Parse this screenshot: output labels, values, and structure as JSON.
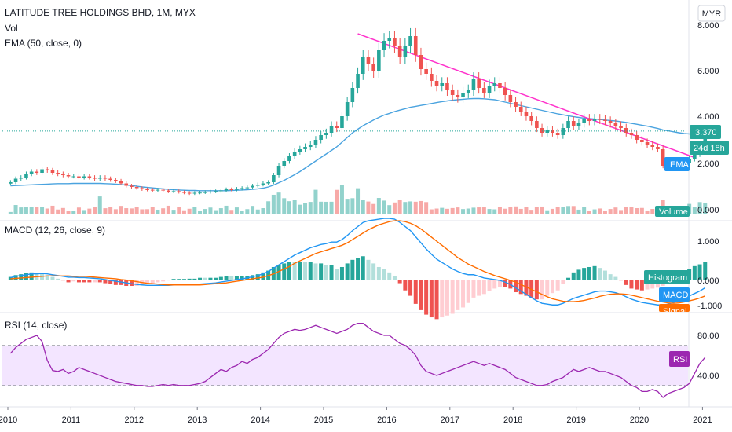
{
  "header": {
    "symbol_title": "LATITUDE TREE HOLDINGS BHD, 1M, MYX",
    "vol_label": "Vol",
    "ema_label": "EMA (50, close, 0)",
    "currency": "MYR"
  },
  "colors": {
    "up": "#26a69a",
    "down": "#ef5350",
    "ema": "#4aa3df",
    "trendline": "#ff33cc",
    "macd": "#2196f3",
    "signal": "#ff6d00",
    "rsi": "#9c27b0",
    "rsi_band": "#f3e5ff",
    "last_price": "#26a69a"
  },
  "price_axis": {
    "ticks": [
      "8.000",
      "6.000",
      "4.000",
      "2.000",
      "0.000"
    ],
    "last_price": "3.370",
    "countdown": "24d 18h",
    "ema_tag": "EMA",
    "volume_tag": "Volume"
  },
  "macd_panel": {
    "title": "MACD (12, 26, close, 9)",
    "ticks": [
      "1.000",
      "0.000",
      "-1.000"
    ],
    "histogram_tag": "Histogram",
    "macd_tag": "MACD",
    "signal_tag": "Signal"
  },
  "rsi_panel": {
    "title": "RSI (14, close)",
    "ticks": [
      "80.00",
      "40.00"
    ],
    "rsi_tag": "RSI",
    "upper_band": 70,
    "lower_band": 30
  },
  "x_axis": {
    "labels": [
      "2010",
      "2011",
      "2012",
      "2013",
      "2014",
      "2015",
      "2016",
      "2017",
      "2018",
      "2019",
      "2020",
      "2021"
    ]
  },
  "chart_data": {
    "type": "candlestick",
    "interval": "monthly",
    "x_start": "2010-01",
    "price": {
      "ylim": [
        0,
        8
      ],
      "close": [
        1.2,
        1.35,
        1.4,
        1.55,
        1.65,
        1.6,
        1.75,
        1.7,
        1.6,
        1.55,
        1.5,
        1.45,
        1.45,
        1.4,
        1.45,
        1.4,
        1.35,
        1.4,
        1.35,
        1.3,
        1.25,
        1.15,
        1.05,
        1.0,
        0.95,
        0.9,
        0.88,
        0.85,
        0.88,
        0.85,
        0.8,
        0.82,
        0.78,
        0.75,
        0.72,
        0.75,
        0.76,
        0.78,
        0.8,
        0.82,
        0.85,
        0.9,
        0.88,
        0.92,
        0.95,
        0.98,
        1.05,
        1.1,
        1.15,
        1.2,
        1.5,
        1.9,
        2.1,
        2.3,
        2.5,
        2.6,
        2.7,
        2.8,
        3.0,
        3.2,
        3.3,
        3.6,
        3.5,
        4.0,
        4.6,
        5.2,
        5.8,
        6.5,
        6.2,
        5.9,
        6.8,
        7.2,
        7.3,
        7.0,
        6.5,
        7.0,
        7.4,
        6.6,
        6.0,
        5.8,
        5.5,
        5.3,
        5.4,
        5.1,
        4.9,
        4.8,
        5.0,
        5.1,
        5.6,
        5.2,
        5.0,
        5.3,
        5.4,
        5.2,
        4.9,
        4.6,
        4.4,
        4.2,
        4.0,
        3.8,
        3.5,
        3.3,
        3.4,
        3.3,
        3.2,
        3.5,
        3.8,
        3.6,
        3.7,
        3.9,
        3.8,
        3.9,
        3.85,
        3.8,
        3.7,
        3.6,
        3.5,
        3.3,
        3.2,
        3.0,
        2.9,
        2.8,
        2.7,
        2.6,
        1.9,
        2.0,
        2.1,
        2.05,
        2.0,
        2.2,
        2.4,
        2.8,
        3.37
      ],
      "ema_50": [
        1.05,
        1.06,
        1.07,
        1.08,
        1.09,
        1.1,
        1.11,
        1.12,
        1.13,
        1.14,
        1.14,
        1.14,
        1.15,
        1.15,
        1.15,
        1.15,
        1.15,
        1.15,
        1.14,
        1.13,
        1.12,
        1.1,
        1.08,
        1.06,
        1.03,
        1.0,
        0.98,
        0.96,
        0.94,
        0.92,
        0.9,
        0.88,
        0.87,
        0.86,
        0.85,
        0.85,
        0.84,
        0.84,
        0.84,
        0.84,
        0.84,
        0.84,
        0.85,
        0.86,
        0.87,
        0.88,
        0.9,
        0.92,
        0.95,
        1.0,
        1.08,
        1.18,
        1.28,
        1.4,
        1.52,
        1.65,
        1.8,
        1.95,
        2.1,
        2.25,
        2.4,
        2.55,
        2.7,
        2.9,
        3.1,
        3.3,
        3.45,
        3.6,
        3.72,
        3.84,
        3.95,
        4.05,
        4.12,
        4.2,
        4.26,
        4.32,
        4.38,
        4.42,
        4.46,
        4.5,
        4.54,
        4.58,
        4.62,
        4.65,
        4.68,
        4.7,
        4.72,
        4.74,
        4.75,
        4.75,
        4.74,
        4.72,
        4.7,
        4.65,
        4.6,
        4.55,
        4.5,
        4.45,
        4.4,
        4.35,
        4.3,
        4.25,
        4.2,
        4.15,
        4.1,
        4.06,
        4.02,
        3.98,
        3.95,
        3.92,
        3.9,
        3.88,
        3.86,
        3.84,
        3.82,
        3.8,
        3.77,
        3.74,
        3.7,
        3.66,
        3.62,
        3.58,
        3.53,
        3.48,
        3.42,
        3.38,
        3.34,
        3.3,
        3.27,
        3.25,
        3.23,
        3.22,
        3.25
      ],
      "trendline": [
        {
          "x": "2015-07",
          "y": 7.5
        },
        {
          "x": "2020-11",
          "y": 2.25
        }
      ]
    },
    "macd": {
      "ylim": [
        -1.2,
        1.6
      ],
      "macd_line": [
        0.05,
        0.08,
        0.1,
        0.12,
        0.14,
        0.14,
        0.15,
        0.14,
        0.12,
        0.1,
        0.08,
        0.06,
        0.06,
        0.05,
        0.05,
        0.04,
        0.03,
        0.02,
        0.0,
        -0.02,
        -0.04,
        -0.06,
        -0.08,
        -0.1,
        -0.12,
        -0.13,
        -0.14,
        -0.14,
        -0.14,
        -0.14,
        -0.14,
        -0.13,
        -0.13,
        -0.13,
        -0.12,
        -0.12,
        -0.11,
        -0.1,
        -0.09,
        -0.08,
        -0.06,
        -0.04,
        -0.02,
        0.0,
        0.02,
        0.04,
        0.07,
        0.1,
        0.14,
        0.2,
        0.28,
        0.36,
        0.44,
        0.52,
        0.6,
        0.66,
        0.72,
        0.78,
        0.82,
        0.86,
        0.88,
        0.92,
        0.92,
        0.98,
        1.08,
        1.2,
        1.3,
        1.4,
        1.44,
        1.46,
        1.48,
        1.5,
        1.5,
        1.48,
        1.4,
        1.3,
        1.2,
        1.05,
        0.9,
        0.75,
        0.62,
        0.5,
        0.42,
        0.34,
        0.26,
        0.2,
        0.15,
        0.12,
        0.12,
        0.08,
        0.04,
        0.02,
        0.0,
        -0.02,
        -0.06,
        -0.12,
        -0.2,
        -0.28,
        -0.36,
        -0.44,
        -0.52,
        -0.58,
        -0.6,
        -0.62,
        -0.62,
        -0.58,
        -0.52,
        -0.46,
        -0.42,
        -0.38,
        -0.34,
        -0.3,
        -0.28,
        -0.28,
        -0.3,
        -0.32,
        -0.36,
        -0.42,
        -0.48,
        -0.52,
        -0.56,
        -0.58,
        -0.6,
        -0.62,
        -0.62,
        -0.6,
        -0.56,
        -0.5,
        -0.45,
        -0.4,
        -0.34,
        -0.28,
        -0.2
      ],
      "signal_line": [
        0.02,
        0.03,
        0.04,
        0.05,
        0.06,
        0.07,
        0.08,
        0.09,
        0.09,
        0.09,
        0.09,
        0.09,
        0.08,
        0.08,
        0.08,
        0.07,
        0.06,
        0.05,
        0.04,
        0.03,
        0.02,
        0.0,
        -0.01,
        -0.03,
        -0.05,
        -0.07,
        -0.09,
        -0.1,
        -0.11,
        -0.12,
        -0.13,
        -0.13,
        -0.13,
        -0.13,
        -0.13,
        -0.13,
        -0.13,
        -0.12,
        -0.11,
        -0.1,
        -0.09,
        -0.08,
        -0.06,
        -0.04,
        -0.02,
        0.0,
        0.02,
        0.04,
        0.06,
        0.1,
        0.14,
        0.2,
        0.26,
        0.32,
        0.4,
        0.46,
        0.52,
        0.58,
        0.64,
        0.68,
        0.72,
        0.76,
        0.8,
        0.84,
        0.9,
        0.98,
        1.06,
        1.14,
        1.22,
        1.28,
        1.34,
        1.38,
        1.42,
        1.44,
        1.44,
        1.42,
        1.38,
        1.32,
        1.24,
        1.14,
        1.04,
        0.94,
        0.84,
        0.74,
        0.64,
        0.54,
        0.46,
        0.38,
        0.32,
        0.26,
        0.2,
        0.15,
        0.1,
        0.06,
        0.02,
        -0.02,
        -0.06,
        -0.12,
        -0.18,
        -0.24,
        -0.3,
        -0.36,
        -0.42,
        -0.47,
        -0.5,
        -0.53,
        -0.54,
        -0.54,
        -0.53,
        -0.51,
        -0.48,
        -0.45,
        -0.41,
        -0.38,
        -0.36,
        -0.35,
        -0.35,
        -0.36,
        -0.38,
        -0.41,
        -0.44,
        -0.47,
        -0.5,
        -0.53,
        -0.55,
        -0.57,
        -0.58,
        -0.57,
        -0.55,
        -0.52,
        -0.49,
        -0.45,
        -0.4
      ]
    },
    "rsi": {
      "ylim": [
        10,
        100
      ],
      "values": [
        62,
        68,
        72,
        76,
        78,
        80,
        74,
        55,
        45,
        44,
        46,
        42,
        44,
        48,
        46,
        44,
        42,
        40,
        38,
        36,
        34,
        33,
        32,
        31,
        30,
        30,
        29,
        29,
        30,
        31,
        30,
        31,
        30,
        30,
        30,
        31,
        32,
        34,
        38,
        42,
        46,
        44,
        48,
        50,
        54,
        52,
        56,
        58,
        62,
        66,
        72,
        78,
        82,
        84,
        86,
        85,
        86,
        88,
        90,
        88,
        86,
        84,
        82,
        84,
        86,
        90,
        92,
        92,
        88,
        84,
        82,
        80,
        80,
        76,
        72,
        70,
        66,
        60,
        50,
        44,
        42,
        40,
        42,
        44,
        46,
        48,
        50,
        52,
        54,
        52,
        50,
        52,
        50,
        48,
        46,
        42,
        38,
        36,
        34,
        32,
        30,
        30,
        31,
        34,
        36,
        38,
        42,
        46,
        44,
        46,
        48,
        46,
        44,
        44,
        42,
        40,
        38,
        34,
        30,
        28,
        24,
        24,
        26,
        24,
        18,
        22,
        24,
        26,
        28,
        32,
        42,
        52,
        58
      ]
    }
  }
}
